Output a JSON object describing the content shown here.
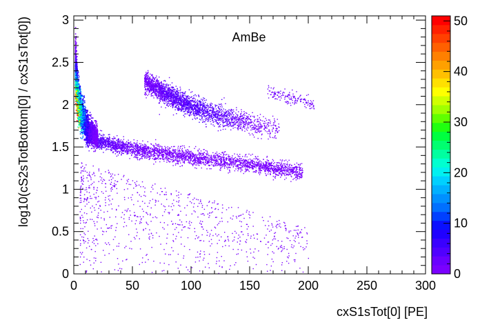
{
  "chart_data": {
    "type": "heatmap",
    "title": "AmBe",
    "xlabel": "cxS1sTot[0]  [PE]",
    "ylabel": "log10(cS2sTotBottom[0] / cxS1sTot[0])",
    "xlim": [
      0,
      300
    ],
    "ylim": [
      0,
      3.05
    ],
    "x_ticks": [
      0,
      50,
      100,
      150,
      200,
      250,
      300
    ],
    "x_tick_labels": [
      "0",
      "50",
      "100",
      "150",
      "200",
      "250",
      "300"
    ],
    "y_ticks": [
      0,
      0.5,
      1,
      1.5,
      2,
      2.5,
      3
    ],
    "y_tick_labels": [
      "0",
      "0.5",
      "1",
      "1.5",
      "2",
      "2.5",
      "3"
    ],
    "colorbar": {
      "min": 0,
      "max": 51,
      "ticks": [
        0,
        10,
        20,
        30,
        40,
        50
      ],
      "tick_labels": [
        "0",
        "10",
        "20",
        "30",
        "40",
        "50"
      ],
      "palette": [
        "#7a00ff",
        "#6a00ff",
        "#5000ff",
        "#3a00ff",
        "#2000ff",
        "#0a10ff",
        "#0040ff",
        "#0070ff",
        "#0090ff",
        "#00b0ff",
        "#00d0ff",
        "#00f0f0",
        "#00ffd0",
        "#00ffa0",
        "#00ff70",
        "#00ff40",
        "#20ff10",
        "#60ff00",
        "#a0ff00",
        "#d0ff00",
        "#ffff00",
        "#ffe000",
        "#ffc000",
        "#ffa000",
        "#ff8000",
        "#ff6000",
        "#ff4000",
        "#ff2000",
        "#ff0000"
      ]
    },
    "populations": [
      {
        "name": "low-S1 dense band",
        "x_range": [
          1,
          20
        ],
        "y_trend": [
          [
            1,
            2.45
          ],
          [
            3,
            2.1
          ],
          [
            6,
            1.9
          ],
          [
            12,
            1.72
          ],
          [
            20,
            1.62
          ]
        ],
        "peak_count": 51
      },
      {
        "name": "lower band",
        "x_range": [
          10,
          195
        ],
        "y_trend": [
          [
            10,
            1.62
          ],
          [
            25,
            1.56
          ],
          [
            50,
            1.48
          ],
          [
            100,
            1.38
          ],
          [
            150,
            1.3
          ],
          [
            195,
            1.2
          ]
        ],
        "peak_count": 6
      },
      {
        "name": "upper band",
        "x_range": [
          60,
          175
        ],
        "y_trend": [
          [
            60,
            2.28
          ],
          [
            80,
            2.12
          ],
          [
            100,
            1.98
          ],
          [
            130,
            1.85
          ],
          [
            160,
            1.75
          ],
          [
            175,
            1.7
          ]
        ],
        "peak_count": 5
      },
      {
        "name": "upper-right cluster",
        "x_range": [
          165,
          205
        ],
        "y_trend": [
          [
            165,
            2.15
          ],
          [
            190,
            2.07
          ],
          [
            205,
            2.0
          ]
        ],
        "peak_count": 2
      },
      {
        "name": "diffuse scatter",
        "x_range": [
          5,
          200
        ],
        "y_range": [
          0,
          1.3
        ],
        "peak_count": 1
      }
    ]
  }
}
